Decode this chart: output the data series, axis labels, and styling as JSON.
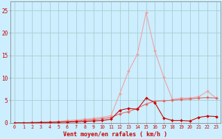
{
  "x": [
    0,
    1,
    2,
    3,
    4,
    5,
    6,
    7,
    8,
    9,
    10,
    11,
    12,
    13,
    14,
    15,
    16,
    17,
    18,
    19,
    20,
    21,
    22,
    23
  ],
  "y_rafales": [
    0.0,
    0.0,
    0.1,
    0.15,
    0.2,
    0.3,
    0.5,
    0.6,
    0.8,
    1.0,
    1.2,
    1.6,
    6.5,
    11.5,
    15.2,
    24.5,
    16.0,
    10.2,
    5.2,
    5.5,
    5.5,
    5.8,
    7.0,
    5.5
  ],
  "y_moyen": [
    0.0,
    0.0,
    0.0,
    0.05,
    0.05,
    0.1,
    0.15,
    0.2,
    0.3,
    0.4,
    0.5,
    0.8,
    2.8,
    3.2,
    3.0,
    5.5,
    4.5,
    1.1,
    0.5,
    0.5,
    0.4,
    1.2,
    1.5,
    1.4
  ],
  "y_middle": [
    0.0,
    0.0,
    0.05,
    0.1,
    0.15,
    0.2,
    0.3,
    0.4,
    0.55,
    0.7,
    0.9,
    1.2,
    2.0,
    2.5,
    3.2,
    4.2,
    4.8,
    4.9,
    5.0,
    5.2,
    5.3,
    5.5,
    5.6,
    5.5
  ],
  "color_rafales": "#f0a0a0",
  "color_moyen": "#cc0000",
  "color_middle": "#e06868",
  "bg_color": "#cceeff",
  "grid_color": "#aacccc",
  "text_color": "#cc0000",
  "xlabel": "Vent moyen/en rafales ( km/h )",
  "ylim": [
    0,
    27
  ],
  "yticks": [
    0,
    5,
    10,
    15,
    20,
    25
  ],
  "xticks": [
    0,
    1,
    2,
    3,
    4,
    5,
    6,
    7,
    8,
    9,
    10,
    11,
    12,
    13,
    14,
    15,
    16,
    17,
    18,
    19,
    20,
    21,
    22,
    23
  ]
}
